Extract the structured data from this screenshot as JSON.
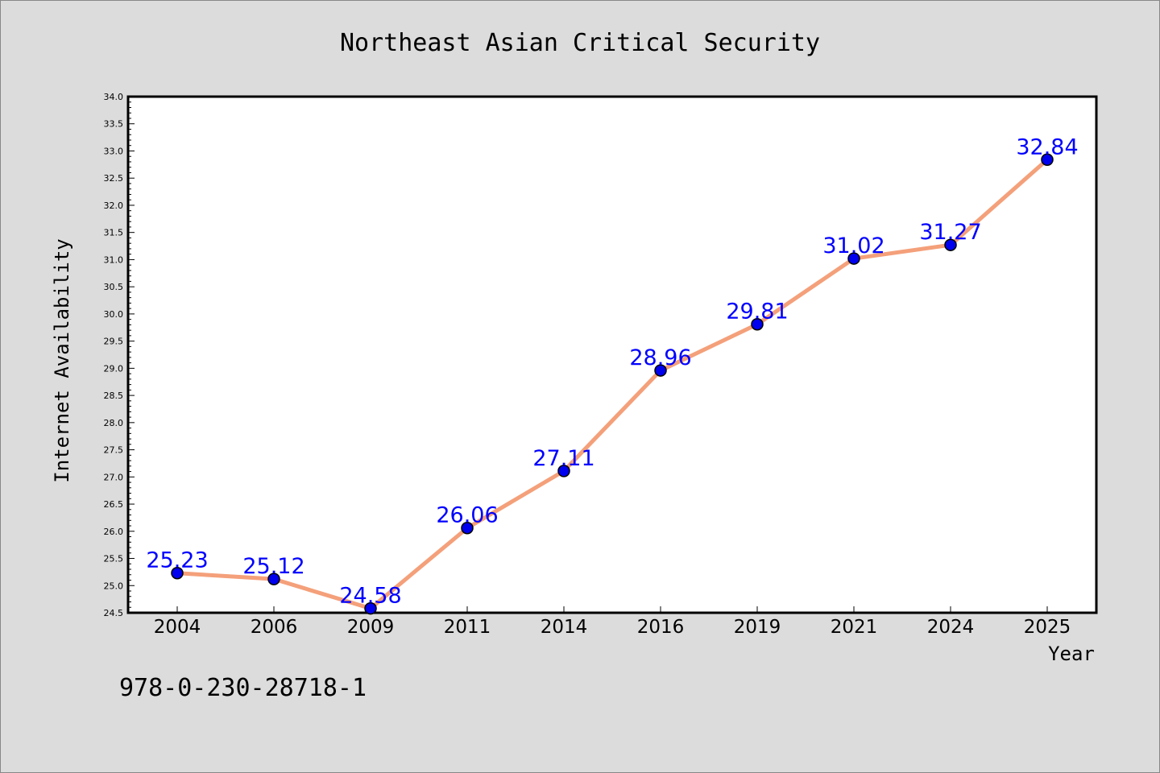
{
  "chart_data": {
    "type": "line",
    "title": "Northeast Asian Critical Security",
    "xlabel": "Year",
    "ylabel": "Internet Availability",
    "categories": [
      "2004",
      "2006",
      "2009",
      "2011",
      "2014",
      "2016",
      "2019",
      "2021",
      "2024",
      "2025"
    ],
    "series": [
      {
        "values": [
          25.23,
          25.12,
          24.58,
          26.06,
          27.11,
          28.96,
          29.81,
          31.02,
          31.27,
          32.84
        ],
        "data_labels": [
          "25.23",
          "25.12",
          "24.58",
          "26.06",
          "27.11",
          "28.96",
          "29.81",
          "31.02",
          "31.27",
          "32.84"
        ]
      }
    ],
    "ylim": [
      24.5,
      34.0
    ],
    "yticks": [
      "24.5",
      "25.0",
      "25.5",
      "26.0",
      "26.5",
      "27.0",
      "27.5",
      "28.0",
      "28.5",
      "29.0",
      "29.5",
      "30.0",
      "30.5",
      "31.0",
      "31.5",
      "32.0",
      "32.5",
      "33.0",
      "33.5",
      "34.0"
    ],
    "grid": false,
    "legend": "none",
    "colors": {
      "line": "#f4a07a",
      "marker": "#0000ee",
      "label": "#0000ff",
      "background": "#dcdcdc",
      "plot_background": "#ffffff"
    }
  },
  "footnote": "978-0-230-28718-1"
}
